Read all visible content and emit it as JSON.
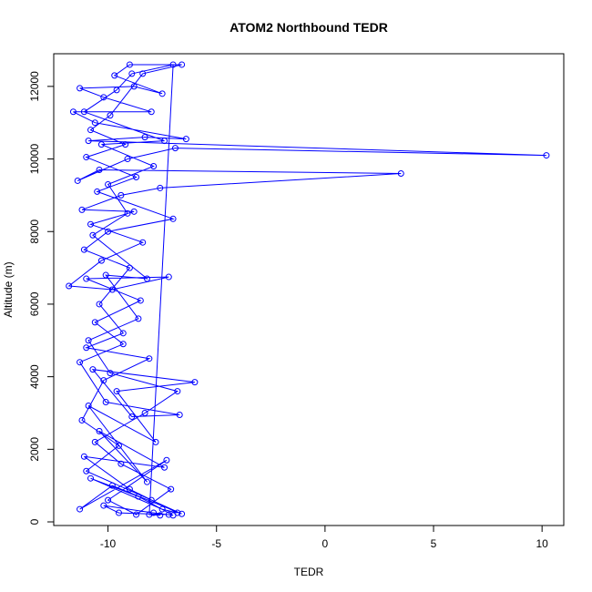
{
  "chart_data": {
    "type": "scatter",
    "title": "ATOM2 Northbound TEDR",
    "xlabel": "TEDR",
    "ylabel": "Altitude (m)",
    "xlim": [
      -12.5,
      11
    ],
    "ylim": [
      -100,
      12900
    ],
    "x_ticks": [
      -10,
      -5,
      0,
      5,
      10
    ],
    "x_tick_labels": [
      "-10",
      "-5",
      "0",
      "5",
      "10"
    ],
    "y_ticks": [
      0,
      2000,
      4000,
      6000,
      8000,
      10000,
      12000
    ],
    "y_tick_labels": [
      "0",
      "2000",
      "4000",
      "6000",
      "8000",
      "10000",
      "12000"
    ],
    "grid": false,
    "legend": "none",
    "series_color": "#0000ff",
    "series": [
      {
        "points": [
          {
            "x": -7.2,
            "y": 200
          },
          {
            "x": -9.5,
            "y": 250
          },
          {
            "x": -10.2,
            "y": 450
          },
          {
            "x": -7.9,
            "y": 250
          },
          {
            "x": -7.0,
            "y": 180
          },
          {
            "x": -8.6,
            "y": 700
          },
          {
            "x": -10.8,
            "y": 1200
          },
          {
            "x": -7.5,
            "y": 350
          },
          {
            "x": -6.8,
            "y": 250
          },
          {
            "x": -9.0,
            "y": 900
          },
          {
            "x": -11.1,
            "y": 1800
          },
          {
            "x": -7.4,
            "y": 1500
          },
          {
            "x": -10.4,
            "y": 2500
          },
          {
            "x": -8.2,
            "y": 1100
          },
          {
            "x": -10.9,
            "y": 3200
          },
          {
            "x": -7.8,
            "y": 2200
          },
          {
            "x": -9.6,
            "y": 3600
          },
          {
            "x": -6.0,
            "y": 3850
          },
          {
            "x": -10.7,
            "y": 4200
          },
          {
            "x": -8.9,
            "y": 2900
          },
          {
            "x": -6.7,
            "y": 2950
          },
          {
            "x": -10.1,
            "y": 3300
          },
          {
            "x": -11.3,
            "y": 4400
          },
          {
            "x": -9.3,
            "y": 4900
          },
          {
            "x": -10.6,
            "y": 5500
          },
          {
            "x": -8.5,
            "y": 6100
          },
          {
            "x": -11.0,
            "y": 6700
          },
          {
            "x": -7.2,
            "y": 6750
          },
          {
            "x": -9.8,
            "y": 6400
          },
          {
            "x": -11.8,
            "y": 6500
          },
          {
            "x": -10.3,
            "y": 7200
          },
          {
            "x": -8.4,
            "y": 7700
          },
          {
            "x": -10.8,
            "y": 8200
          },
          {
            "x": -8.8,
            "y": 8550
          },
          {
            "x": -11.2,
            "y": 8600
          },
          {
            "x": -9.4,
            "y": 9000
          },
          {
            "x": -7.6,
            "y": 9200
          },
          {
            "x": 3.5,
            "y": 9600
          },
          {
            "x": -10.4,
            "y": 9700
          },
          {
            "x": -11.4,
            "y": 9400
          },
          {
            "x": -9.1,
            "y": 10000
          },
          {
            "x": -6.9,
            "y": 10300
          },
          {
            "x": 10.2,
            "y": 10100
          },
          {
            "x": -10.9,
            "y": 10500
          },
          {
            "x": -8.3,
            "y": 10600
          },
          {
            "x": -6.4,
            "y": 10550
          },
          {
            "x": -10.6,
            "y": 11000
          },
          {
            "x": -11.6,
            "y": 11300
          },
          {
            "x": -8.0,
            "y": 11300
          },
          {
            "x": -10.2,
            "y": 11700
          },
          {
            "x": -11.3,
            "y": 11950
          },
          {
            "x": -8.8,
            "y": 12000
          },
          {
            "x": -7.5,
            "y": 11800
          },
          {
            "x": -9.7,
            "y": 12300
          },
          {
            "x": -9.0,
            "y": 12600
          },
          {
            "x": -6.6,
            "y": 12600
          },
          {
            "x": -8.4,
            "y": 12350
          },
          {
            "x": -9.9,
            "y": 11200
          },
          {
            "x": -10.8,
            "y": 10800
          },
          {
            "x": -9.2,
            "y": 10400
          },
          {
            "x": -11.0,
            "y": 10050
          },
          {
            "x": -8.7,
            "y": 9500
          },
          {
            "x": -10.5,
            "y": 9100
          },
          {
            "x": -7.0,
            "y": 8350
          },
          {
            "x": -10.0,
            "y": 8000
          },
          {
            "x": -11.1,
            "y": 7500
          },
          {
            "x": -9.0,
            "y": 7000
          },
          {
            "x": -10.4,
            "y": 6000
          },
          {
            "x": -9.3,
            "y": 5200
          },
          {
            "x": -11.0,
            "y": 4800
          },
          {
            "x": -8.1,
            "y": 4500
          },
          {
            "x": -10.2,
            "y": 3900
          },
          {
            "x": -11.2,
            "y": 2800
          },
          {
            "x": -9.5,
            "y": 2100
          },
          {
            "x": -11.0,
            "y": 1400
          },
          {
            "x": -8.0,
            "y": 600
          },
          {
            "x": -6.6,
            "y": 220
          },
          {
            "x": -9.8,
            "y": 1000
          },
          {
            "x": -11.3,
            "y": 350
          },
          {
            "x": -7.3,
            "y": 1700
          },
          {
            "x": -10.0,
            "y": 600
          },
          {
            "x": -8.7,
            "y": 200
          },
          {
            "x": -7.1,
            "y": 900
          },
          {
            "x": -9.4,
            "y": 1600
          },
          {
            "x": -10.6,
            "y": 2200
          },
          {
            "x": -8.3,
            "y": 3000
          },
          {
            "x": -6.8,
            "y": 3600
          },
          {
            "x": -9.9,
            "y": 4100
          },
          {
            "x": -10.9,
            "y": 5000
          },
          {
            "x": -8.6,
            "y": 5600
          },
          {
            "x": -10.1,
            "y": 6800
          },
          {
            "x": -8.2,
            "y": 6700
          },
          {
            "x": -10.7,
            "y": 7900
          },
          {
            "x": -9.1,
            "y": 8500
          },
          {
            "x": -10.0,
            "y": 9300
          },
          {
            "x": -7.9,
            "y": 9800
          },
          {
            "x": -10.3,
            "y": 10400
          },
          {
            "x": -7.4,
            "y": 10500
          },
          {
            "x": -11.1,
            "y": 11300
          },
          {
            "x": -9.6,
            "y": 11900
          },
          {
            "x": -8.9,
            "y": 12350
          },
          {
            "x": -7.0,
            "y": 12600
          },
          {
            "x": -8.1,
            "y": 200
          },
          {
            "x": -7.6,
            "y": 180
          }
        ]
      }
    ]
  }
}
